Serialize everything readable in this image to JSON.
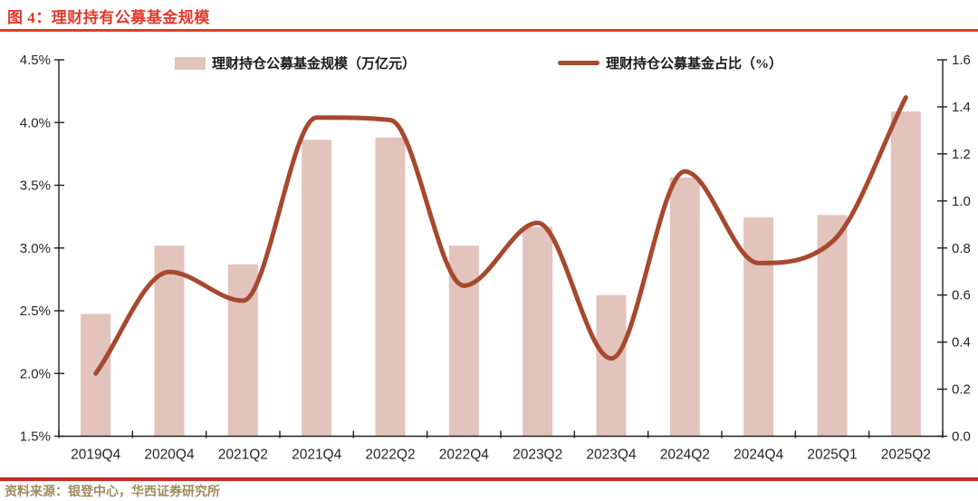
{
  "header": {
    "title": "图 4：理财持有公募基金规模"
  },
  "footer": {
    "source": "资料来源：银登中心，华西证券研究所"
  },
  "colors": {
    "accent_red": "#e23b2c",
    "rule_bottom_red": "#cf2b26",
    "bar_fill": "#e2c4bc",
    "line": "#a6492f",
    "axis_text": "#262626",
    "axis_line": "#1f1f1f",
    "legend_text": "#1a1a1a",
    "source_text": "#9e8c5e"
  },
  "chart_data": {
    "type": "combo",
    "title": "理财持有公募基金规模",
    "categories": [
      "2019Q4",
      "2020Q4",
      "2021Q2",
      "2021Q4",
      "2022Q2",
      "2022Q4",
      "2023Q2",
      "2023Q4",
      "2024Q2",
      "2024Q4",
      "2025Q1",
      "2025Q2"
    ],
    "series": [
      {
        "name": "理财持仓公募基金规模（万亿元）",
        "type": "bar",
        "axis": "right",
        "values": [
          0.52,
          0.81,
          0.73,
          1.26,
          1.27,
          0.81,
          0.89,
          0.6,
          1.1,
          0.93,
          0.94,
          1.38
        ]
      },
      {
        "name": "理财持仓公募基金占比（%）",
        "type": "line",
        "axis": "left",
        "values": [
          2.0,
          2.81,
          2.58,
          4.04,
          4.02,
          2.7,
          3.2,
          2.12,
          3.61,
          2.88,
          3.05,
          4.2
        ]
      }
    ],
    "left_axis": {
      "min": 1.5,
      "max": 4.5,
      "ticks": [
        "4.5%",
        "4.0%",
        "3.5%",
        "3.0%",
        "2.5%",
        "2.0%",
        "1.5%"
      ]
    },
    "right_axis": {
      "min": 0.0,
      "max": 1.6,
      "ticks": [
        "1.6",
        "1.4",
        "1.2",
        "1.0",
        "0.8",
        "0.6",
        "0.4",
        "0.2",
        "0.0"
      ]
    },
    "grid": false,
    "legend_position": "top"
  }
}
